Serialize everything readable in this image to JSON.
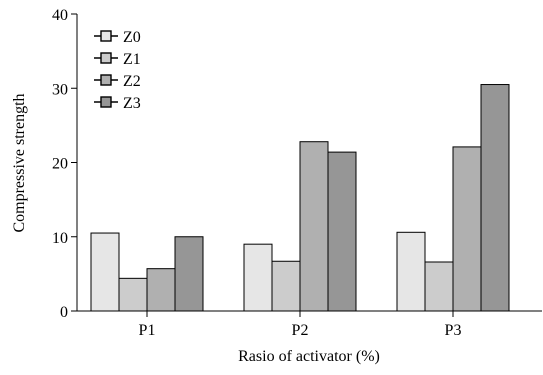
{
  "chart_data": {
    "type": "bar",
    "title": "",
    "xlabel": "Rasio of activator (%)",
    "ylabel": "Compressive strength",
    "categories": [
      "P1",
      "P2",
      "P3"
    ],
    "ylim": [
      0,
      40
    ],
    "yticks": [
      0,
      10,
      20,
      30,
      40
    ],
    "grid": false,
    "legend_position": "top-left",
    "series": [
      {
        "name": "Z0",
        "color": "#e6e6e6",
        "values": [
          10.5,
          9.0,
          10.6
        ]
      },
      {
        "name": "Z1",
        "color": "#cccccc",
        "values": [
          4.4,
          6.7,
          6.6
        ]
      },
      {
        "name": "Z2",
        "color": "#b0b0b0",
        "values": [
          5.7,
          22.8,
          22.1
        ]
      },
      {
        "name": "Z3",
        "color": "#969696",
        "values": [
          10.0,
          21.4,
          30.5
        ]
      }
    ]
  }
}
